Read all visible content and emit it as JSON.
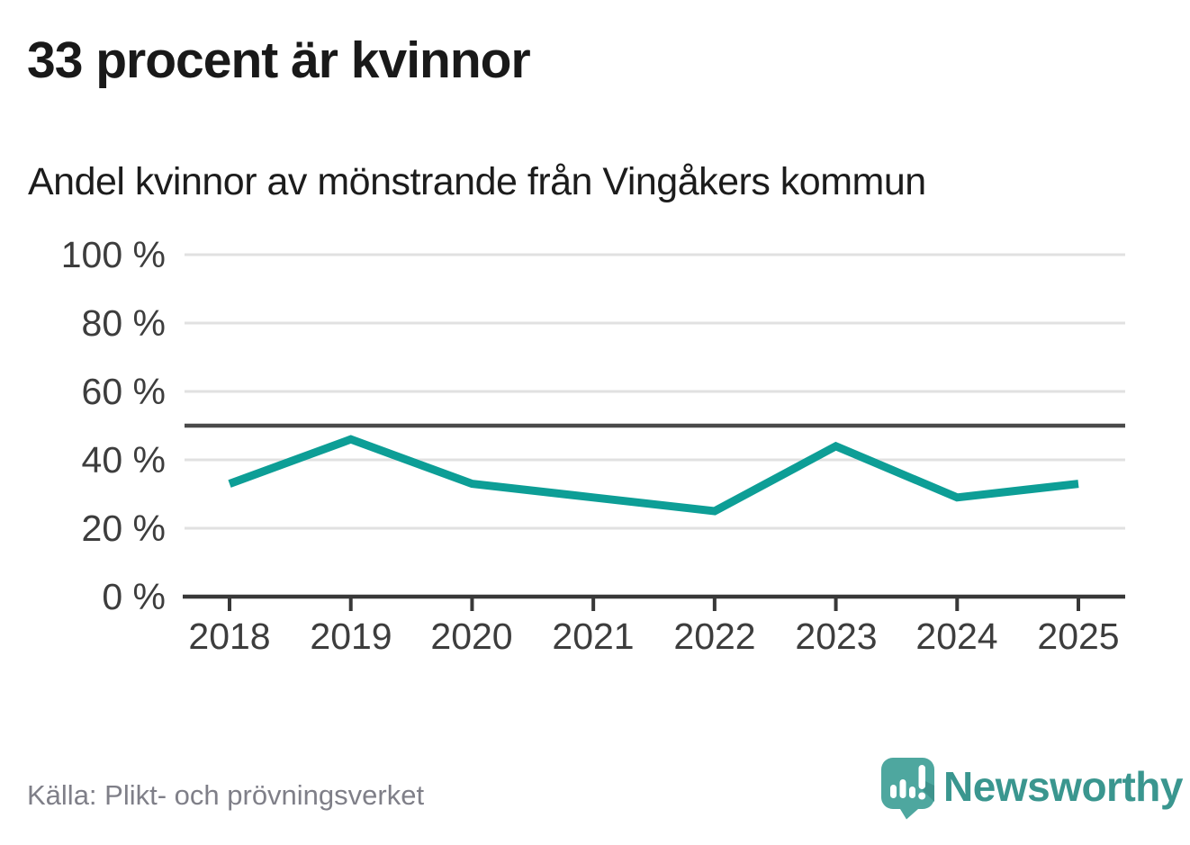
{
  "header": {
    "title": "33 procent är kvinnor",
    "subtitle": "Andel kvinnor av mönstrande från Vingåkers kommun"
  },
  "chart_data": {
    "type": "line",
    "title": "33 procent är kvinnor",
    "subtitle": "Andel kvinnor av mönstrande från Vingåkers kommun",
    "categories": [
      "2018",
      "2019",
      "2020",
      "2021",
      "2022",
      "2023",
      "2024",
      "2025"
    ],
    "series": [
      {
        "name": "Andel kvinnor av mönstrande",
        "values": [
          33,
          46,
          33,
          29,
          25,
          44,
          29,
          33
        ]
      }
    ],
    "unit": "%",
    "ylim": [
      0,
      100
    ],
    "ytick_values": [
      100,
      80,
      60,
      40,
      20,
      0
    ],
    "ytick_labels": [
      "100 %",
      "80 %",
      "60 %",
      "40 %",
      "20 %",
      "0 %"
    ],
    "reference_line_value": 50,
    "grid": true,
    "legend_position": "none",
    "colors": {
      "line": "#0d9e96",
      "gridline": "#e1e1e1",
      "reference_line": "#4a4a4a",
      "axis": "#383838"
    }
  },
  "footer": {
    "source": "Källa: Plikt- och prövningsverket",
    "brand": "Newsworthy",
    "brand_color": "#3a968f",
    "logo_icon": "speech-bubble-bar-chart-exclamation",
    "logo_bubble_color": "#4ea79f"
  }
}
